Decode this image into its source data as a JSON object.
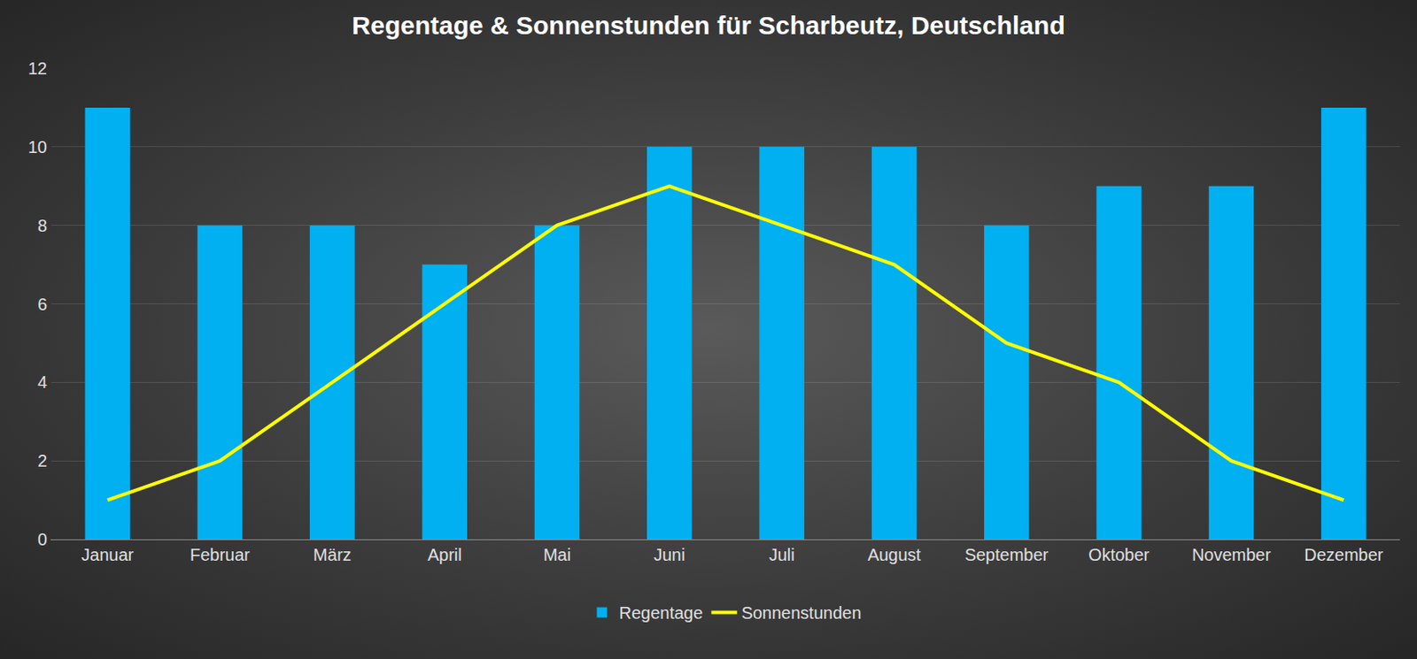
{
  "chart_data": {
    "type": "bar",
    "title": "Regentage & Sonnenstunden für Scharbeutz, Deutschland",
    "categories": [
      "Januar",
      "Februar",
      "März",
      "April",
      "Mai",
      "Juni",
      "Juli",
      "August",
      "September",
      "Oktober",
      "November",
      "Dezember"
    ],
    "series": [
      {
        "name": "Regentage",
        "type": "bar",
        "color": "#00b0f0",
        "values": [
          11,
          8,
          8,
          7,
          8,
          10,
          10,
          10,
          8,
          9,
          9,
          11
        ]
      },
      {
        "name": "Sonnenstunden",
        "type": "line",
        "color": "#ffff00",
        "values": [
          1,
          2,
          4,
          6,
          8,
          9,
          8,
          7,
          5,
          4,
          2,
          1
        ]
      }
    ],
    "ylim": [
      0,
      12
    ],
    "yticks": [
      0,
      2,
      4,
      6,
      8,
      10,
      12
    ],
    "grid": true,
    "legend": "bottom"
  }
}
